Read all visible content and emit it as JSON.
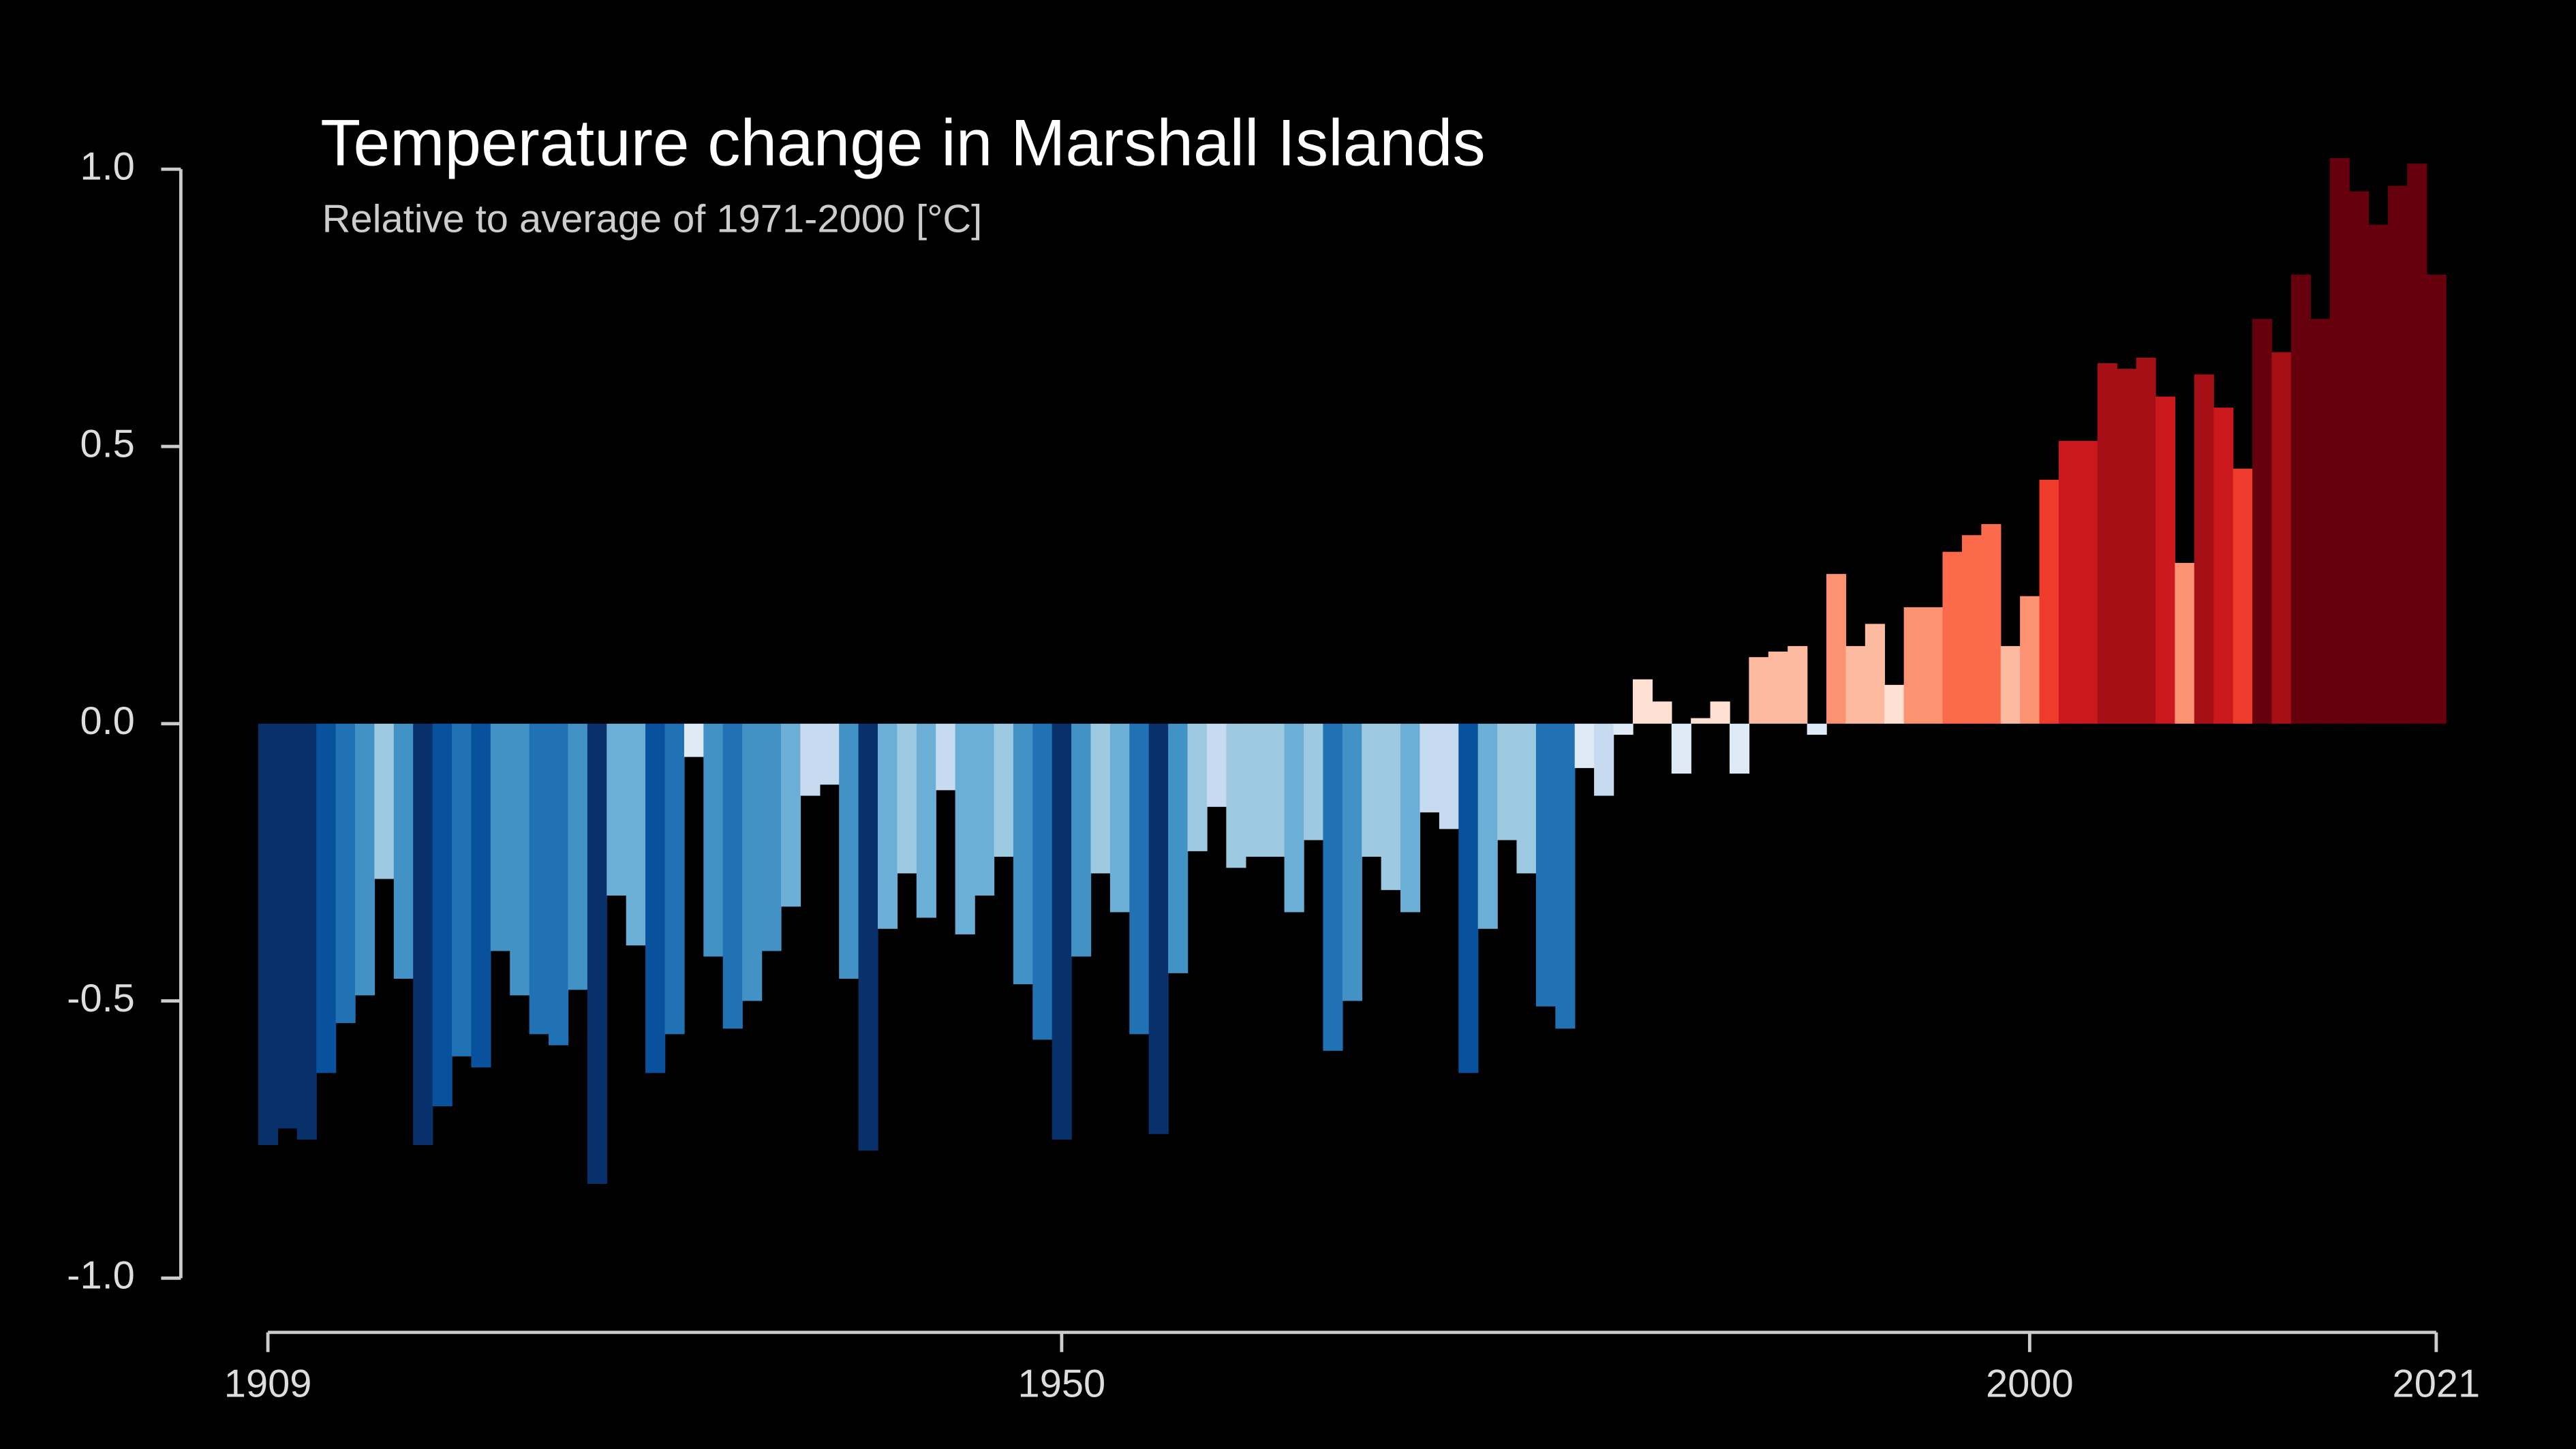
{
  "chart_data": {
    "type": "bar",
    "title": "Temperature change in Marshall Islands",
    "subtitle": "Relative to average of 1971-2000  [°C]",
    "x": [
      1909,
      1910,
      1911,
      1912,
      1913,
      1914,
      1915,
      1916,
      1917,
      1918,
      1919,
      1920,
      1921,
      1922,
      1923,
      1924,
      1925,
      1926,
      1927,
      1928,
      1929,
      1930,
      1931,
      1932,
      1933,
      1934,
      1935,
      1936,
      1937,
      1938,
      1939,
      1940,
      1941,
      1942,
      1943,
      1944,
      1945,
      1946,
      1947,
      1948,
      1949,
      1950,
      1951,
      1952,
      1953,
      1954,
      1955,
      1956,
      1957,
      1958,
      1959,
      1960,
      1961,
      1962,
      1963,
      1964,
      1965,
      1966,
      1967,
      1968,
      1969,
      1970,
      1971,
      1972,
      1973,
      1974,
      1975,
      1976,
      1977,
      1978,
      1979,
      1980,
      1981,
      1982,
      1983,
      1984,
      1985,
      1986,
      1987,
      1988,
      1989,
      1990,
      1991,
      1992,
      1993,
      1994,
      1995,
      1996,
      1997,
      1998,
      1999,
      2000,
      2001,
      2002,
      2003,
      2004,
      2005,
      2006,
      2007,
      2008,
      2009,
      2010,
      2011,
      2012,
      2013,
      2014,
      2015,
      2016,
      2017,
      2018,
      2019,
      2020,
      2021
    ],
    "values": [
      -0.76,
      -0.73,
      -0.75,
      -0.63,
      -0.54,
      -0.49,
      -0.28,
      -0.46,
      -0.76,
      -0.69,
      -0.6,
      -0.62,
      -0.41,
      -0.49,
      -0.56,
      -0.58,
      -0.48,
      -0.83,
      -0.31,
      -0.4,
      -0.63,
      -0.56,
      -0.06,
      -0.42,
      -0.55,
      -0.5,
      -0.41,
      -0.33,
      -0.13,
      -0.11,
      -0.46,
      -0.77,
      -0.37,
      -0.27,
      -0.35,
      -0.12,
      -0.38,
      -0.31,
      -0.24,
      -0.47,
      -0.57,
      -0.75,
      -0.42,
      -0.27,
      -0.34,
      -0.56,
      -0.74,
      -0.45,
      -0.23,
      -0.15,
      -0.26,
      -0.24,
      -0.24,
      -0.34,
      -0.21,
      -0.59,
      -0.5,
      -0.24,
      -0.3,
      -0.34,
      -0.16,
      -0.19,
      -0.63,
      -0.37,
      -0.21,
      -0.27,
      -0.51,
      -0.55,
      -0.08,
      -0.13,
      -0.02,
      0.08,
      0.04,
      -0.09,
      0.01,
      0.04,
      -0.09,
      0.12,
      0.13,
      0.14,
      -0.02,
      0.27,
      0.14,
      0.18,
      0.07,
      0.21,
      0.21,
      0.31,
      0.34,
      0.36,
      0.14,
      0.23,
      0.44,
      0.51,
      0.51,
      0.65,
      0.64,
      0.66,
      0.59,
      0.29,
      0.63,
      0.57,
      0.46,
      0.73,
      0.67,
      0.81,
      0.73,
      1.02,
      0.96,
      0.9,
      0.97,
      1.01,
      0.81
    ],
    "colormap": [
      "#08306b",
      "#08519c",
      "#2171b5",
      "#4292c6",
      "#6baed6",
      "#9ecae1",
      "#c6dbef",
      "#deebf7",
      "#fee0d2",
      "#fcbba1",
      "#fc9272",
      "#fb6a4a",
      "#ef3b2c",
      "#cb181d",
      "#a50f15",
      "#67000d"
    ],
    "color_lim": [
      -0.8,
      0.8
    ],
    "xlim": [
      1909,
      2021
    ],
    "xticks": [
      1909,
      1950,
      2000,
      2021
    ],
    "ylim": [
      -1,
      1
    ],
    "yticks": [
      {
        "value": -1,
        "label": "-1.0"
      },
      {
        "value": -0.5,
        "label": "-0.5"
      },
      {
        "value": 0,
        "label": "0.0"
      },
      {
        "value": 0.5,
        "label": "0.5"
      },
      {
        "value": 1,
        "label": "1.0"
      }
    ],
    "grid": false
  }
}
